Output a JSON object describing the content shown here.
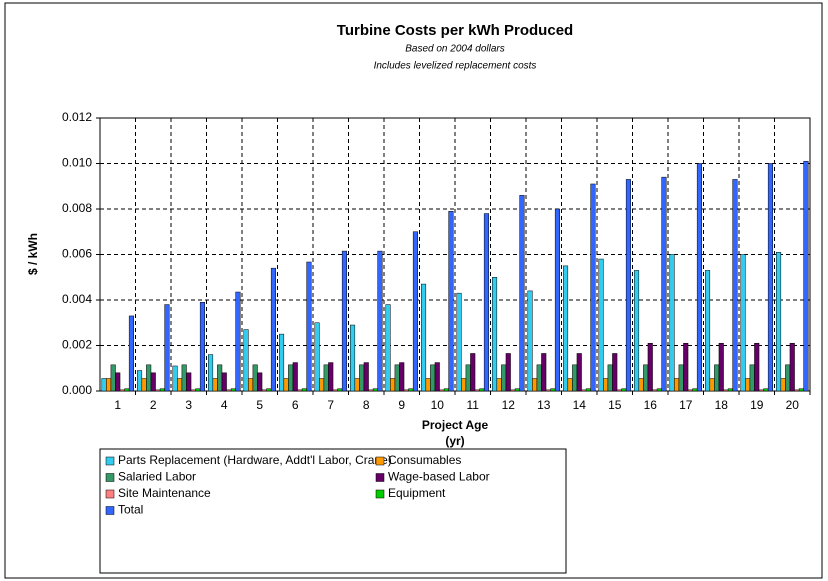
{
  "chart_data": {
    "type": "bar",
    "title": "Turbine Costs per kWh Produced",
    "subtitles": [
      "Based on 2004 dollars",
      "Includes levelized replacement costs"
    ],
    "y_label": "$ / kWh",
    "x_label": [
      "Project Age",
      "(yr)"
    ],
    "categories": [
      "1",
      "2",
      "3",
      "4",
      "5",
      "6",
      "7",
      "8",
      "9",
      "10",
      "11",
      "12",
      "13",
      "14",
      "15",
      "16",
      "17",
      "18",
      "19",
      "20"
    ],
    "series": [
      {
        "name": "Parts Replacement (Hardware, Addt'l Labor, Crane)",
        "color": "#33ccee",
        "values": [
          0.00055,
          0.0009,
          0.0011,
          0.0016,
          0.0027,
          0.0025,
          0.003,
          0.0029,
          0.0038,
          0.0047,
          0.0043,
          0.005,
          0.0044,
          0.0055,
          0.0058,
          0.0053,
          0.006,
          0.0053,
          0.006,
          0.0061
        ]
      },
      {
        "name": "Consumables",
        "color": "#ff9900",
        "values": [
          0.00055,
          0.00055,
          0.00055,
          0.00055,
          0.00055,
          0.00055,
          0.00055,
          0.00055,
          0.00055,
          0.00055,
          0.00055,
          0.00055,
          0.00055,
          0.00055,
          0.00055,
          0.00055,
          0.00055,
          0.00055,
          0.00055,
          0.00055
        ]
      },
      {
        "name": "Salaried Labor",
        "color": "#339966",
        "values": [
          0.00115,
          0.00115,
          0.00115,
          0.00115,
          0.00115,
          0.00115,
          0.00115,
          0.00115,
          0.00115,
          0.00115,
          0.00115,
          0.00115,
          0.00115,
          0.00115,
          0.00115,
          0.00115,
          0.00115,
          0.00115,
          0.00115,
          0.00115
        ]
      },
      {
        "name": "Wage-based Labor",
        "color": "#660066",
        "values": [
          0.0008,
          0.0008,
          0.0008,
          0.0008,
          0.0008,
          0.00125,
          0.00125,
          0.00125,
          0.00125,
          0.00125,
          0.00165,
          0.00165,
          0.00165,
          0.00165,
          0.00165,
          0.0021,
          0.0021,
          0.0021,
          0.0021,
          0.0021
        ]
      },
      {
        "name": "Site Maintenance",
        "color": "#ff8080",
        "values": [
          5e-05,
          5e-05,
          5e-05,
          5e-05,
          5e-05,
          5e-05,
          5e-05,
          5e-05,
          5e-05,
          5e-05,
          5e-05,
          5e-05,
          5e-05,
          5e-05,
          5e-05,
          5e-05,
          5e-05,
          5e-05,
          5e-05,
          5e-05
        ]
      },
      {
        "name": "Equipment",
        "color": "#00cc00",
        "values": [
          0.0001,
          0.0001,
          0.0001,
          0.0001,
          0.0001,
          0.0001,
          0.0001,
          0.0001,
          0.0001,
          0.0001,
          0.0001,
          0.0001,
          0.0001,
          0.0001,
          0.0001,
          0.0001,
          0.0001,
          0.0001,
          0.0001,
          0.0001
        ]
      },
      {
        "name": "Total",
        "color": "#3366ff",
        "values": [
          0.0033,
          0.0038,
          0.0039,
          0.00435,
          0.0054,
          0.00567,
          0.00615,
          0.00615,
          0.007,
          0.0079,
          0.0078,
          0.0086,
          0.008,
          0.0091,
          0.0093,
          0.0094,
          0.01,
          0.0093,
          0.01,
          0.0101
        ]
      }
    ],
    "ylim": [
      0,
      0.012
    ],
    "yticks": [
      {
        "value": 0,
        "label": "0.000"
      },
      {
        "value": 0.002,
        "label": "0.002"
      },
      {
        "value": 0.004,
        "label": "0.004"
      },
      {
        "value": 0.006,
        "label": "0.006"
      },
      {
        "value": 0.008,
        "label": "0.008"
      },
      {
        "value": 0.01,
        "label": "0.010"
      },
      {
        "value": 0.012,
        "label": "0.012"
      }
    ],
    "grid": true
  }
}
